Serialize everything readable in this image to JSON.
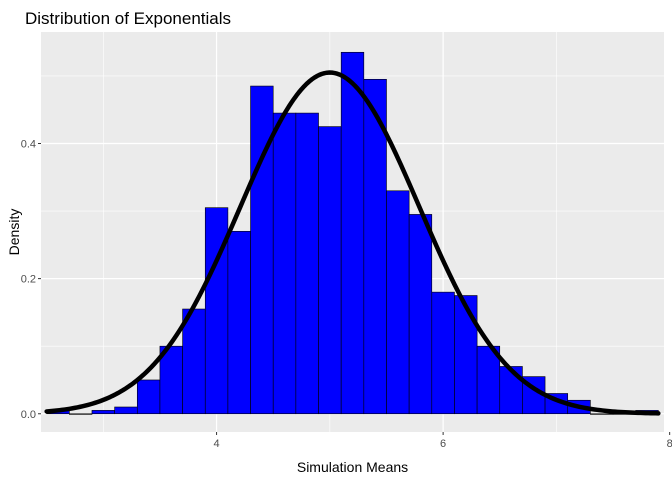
{
  "colors": {
    "panel_background": "#EBEBEB",
    "grid_major": "#FFFFFF",
    "bar_fill": "#0000FF",
    "bar_outline": "#000000",
    "density_line": "#000000"
  },
  "chart_data": {
    "type": "bar",
    "title": "Distribution of Exponentials",
    "xlabel": "Simulation Means",
    "ylabel": "Density",
    "xlim": [
      2.45,
      7.95
    ],
    "ylim": [
      -0.027,
      0.565
    ],
    "x_ticks": [
      4,
      6,
      8
    ],
    "x_tick_labels": [
      "4",
      "6",
      "8"
    ],
    "y_ticks": [
      0.0,
      0.2,
      0.4
    ],
    "y_tick_labels": [
      "0.0",
      "0.2",
      "0.4"
    ],
    "grid": true,
    "histogram": {
      "bin_width": 0.2,
      "bins": [
        {
          "x0": 2.5,
          "density": 0.005
        },
        {
          "x0": 2.7,
          "density": 0.0
        },
        {
          "x0": 2.9,
          "density": 0.005
        },
        {
          "x0": 3.1,
          "density": 0.01
        },
        {
          "x0": 3.3,
          "density": 0.05
        },
        {
          "x0": 3.5,
          "density": 0.1
        },
        {
          "x0": 3.7,
          "density": 0.155
        },
        {
          "x0": 3.9,
          "density": 0.305
        },
        {
          "x0": 4.1,
          "density": 0.27
        },
        {
          "x0": 4.3,
          "density": 0.485
        },
        {
          "x0": 4.5,
          "density": 0.445
        },
        {
          "x0": 4.7,
          "density": 0.445
        },
        {
          "x0": 4.9,
          "density": 0.425
        },
        {
          "x0": 5.1,
          "density": 0.535
        },
        {
          "x0": 5.3,
          "density": 0.495
        },
        {
          "x0": 5.5,
          "density": 0.33
        },
        {
          "x0": 5.7,
          "density": 0.295
        },
        {
          "x0": 5.9,
          "density": 0.18
        },
        {
          "x0": 6.1,
          "density": 0.175
        },
        {
          "x0": 6.3,
          "density": 0.1
        },
        {
          "x0": 6.5,
          "density": 0.07
        },
        {
          "x0": 6.7,
          "density": 0.055
        },
        {
          "x0": 6.9,
          "density": 0.03
        },
        {
          "x0": 7.1,
          "density": 0.02
        },
        {
          "x0": 7.3,
          "density": 0.0
        },
        {
          "x0": 7.5,
          "density": 0.0
        },
        {
          "x0": 7.7,
          "density": 0.005
        }
      ]
    },
    "density_curve": {
      "kind": "normal",
      "mean": 5.0,
      "sd": 0.79,
      "x_range": [
        2.5,
        7.9
      ]
    }
  }
}
